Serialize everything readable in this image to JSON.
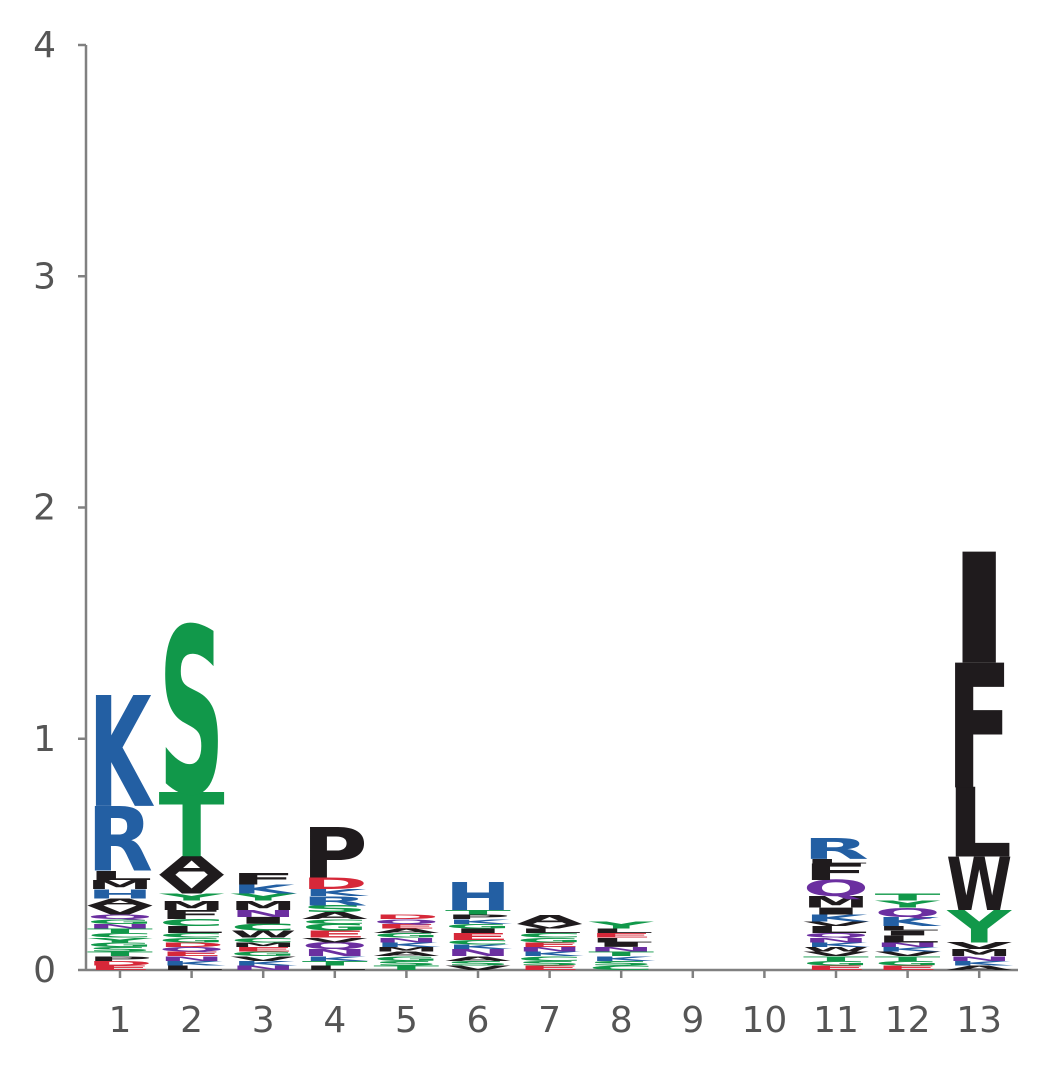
{
  "colors": {
    "axis": "#808080",
    "tick_text": "#555555",
    "acidic": "#d62839",
    "basic": "#235fa3",
    "hydrophobic": "#1f1b1d",
    "polar": "#11984a",
    "amide": "#6b2fa0"
  },
  "chart_data": {
    "type": "sequence-logo",
    "ylim": [
      0,
      4
    ],
    "y_ticks": [
      "0",
      "1",
      "2",
      "3",
      "4"
    ],
    "x_ticks": [
      "1",
      "2",
      "3",
      "4",
      "5",
      "6",
      "7",
      "8",
      "9",
      "10",
      "11",
      "12",
      "13"
    ],
    "color_scheme": {
      "D": "acidic",
      "E": "acidic",
      "K": "basic",
      "R": "basic",
      "H": "basic",
      "S": "polar",
      "T": "polar",
      "G": "polar",
      "Y": "polar",
      "C": "polar",
      "N": "amide",
      "Q": "amide",
      "A": "hydrophobic",
      "V": "hydrophobic",
      "L": "hydrophobic",
      "I": "hydrophobic",
      "P": "hydrophobic",
      "W": "hydrophobic",
      "F": "hydrophobic",
      "M": "hydrophobic"
    },
    "positions": [
      {
        "pos": "1",
        "letters": [
          [
            "E",
            0.02
          ],
          [
            "D",
            0.02
          ],
          [
            "P",
            0.02
          ],
          [
            "T",
            0.02
          ],
          [
            "S",
            0.02
          ],
          [
            "G",
            0.02
          ],
          [
            "Y",
            0.02
          ],
          [
            "C",
            0.02
          ],
          [
            "T",
            0.02
          ],
          [
            "N",
            0.02
          ],
          [
            "G",
            0.02
          ],
          [
            "Q",
            0.02
          ],
          [
            "V",
            0.04
          ],
          [
            "A",
            0.03
          ],
          [
            "H",
            0.04
          ],
          [
            "M",
            0.04
          ],
          [
            "L",
            0.04
          ],
          [
            "R",
            0.28
          ],
          [
            "K",
            0.48
          ]
        ]
      },
      {
        "pos": "2",
        "letters": [
          [
            "L",
            0.02
          ],
          [
            "K",
            0.02
          ],
          [
            "N",
            0.02
          ],
          [
            "E",
            0.02
          ],
          [
            "Q",
            0.02
          ],
          [
            "D",
            0.02
          ],
          [
            "G",
            0.02
          ],
          [
            "C",
            0.02
          ],
          [
            "L",
            0.03
          ],
          [
            "C",
            0.03
          ],
          [
            "F",
            0.04
          ],
          [
            "M",
            0.04
          ],
          [
            "Y",
            0.03
          ],
          [
            "V",
            0.08
          ],
          [
            "A",
            0.08
          ],
          [
            "T",
            0.28
          ],
          [
            "S",
            0.72
          ]
        ]
      },
      {
        "pos": "3",
        "letters": [
          [
            "N",
            0.02
          ],
          [
            "K",
            0.02
          ],
          [
            "V",
            0.02
          ],
          [
            "G",
            0.02
          ],
          [
            "E",
            0.02
          ],
          [
            "M",
            0.02
          ],
          [
            "C",
            0.02
          ],
          [
            "W",
            0.03
          ],
          [
            "C",
            0.03
          ],
          [
            "I",
            0.03
          ],
          [
            "N",
            0.03
          ],
          [
            "M",
            0.04
          ],
          [
            "Y",
            0.03
          ],
          [
            "K",
            0.04
          ],
          [
            "F",
            0.05
          ]
        ]
      },
      {
        "pos": "4",
        "letters": [
          [
            "L",
            0.02
          ],
          [
            "T",
            0.02
          ],
          [
            "K",
            0.02
          ],
          [
            "N",
            0.03
          ],
          [
            "Q",
            0.03
          ],
          [
            "V",
            0.02
          ],
          [
            "E",
            0.03
          ],
          [
            "G",
            0.03
          ],
          [
            "C",
            0.02
          ],
          [
            "A",
            0.03
          ],
          [
            "S",
            0.03
          ],
          [
            "R",
            0.04
          ],
          [
            "K",
            0.03
          ],
          [
            "D",
            0.05
          ],
          [
            "P",
            0.22
          ]
        ]
      },
      {
        "pos": "5",
        "letters": [
          [
            "T",
            0.02
          ],
          [
            "S",
            0.02
          ],
          [
            "G",
            0.02
          ],
          [
            "A",
            0.02
          ],
          [
            "M",
            0.02
          ],
          [
            "K",
            0.02
          ],
          [
            "N",
            0.02
          ],
          [
            "G",
            0.02
          ],
          [
            "A",
            0.02
          ],
          [
            "E",
            0.02
          ],
          [
            "Q",
            0.02
          ],
          [
            "D",
            0.02
          ]
        ]
      },
      {
        "pos": "6",
        "letters": [
          [
            "V",
            0.02
          ],
          [
            "S",
            0.02
          ],
          [
            "A",
            0.02
          ],
          [
            "N",
            0.03
          ],
          [
            "K",
            0.02
          ],
          [
            "C",
            0.02
          ],
          [
            "E",
            0.03
          ],
          [
            "I",
            0.02
          ],
          [
            "G",
            0.02
          ],
          [
            "K",
            0.02
          ],
          [
            "P",
            0.02
          ],
          [
            "T",
            0.02
          ],
          [
            "H",
            0.12
          ]
        ]
      },
      {
        "pos": "7",
        "letters": [
          [
            "E",
            0.02
          ],
          [
            "S",
            0.02
          ],
          [
            "C",
            0.02
          ],
          [
            "K",
            0.02
          ],
          [
            "N",
            0.02
          ],
          [
            "E",
            0.02
          ],
          [
            "G",
            0.02
          ],
          [
            "C",
            0.02
          ],
          [
            "L",
            0.02
          ],
          [
            "V",
            0.02
          ],
          [
            "A",
            0.04
          ]
        ]
      },
      {
        "pos": "8",
        "letters": [
          [
            "C",
            0.02
          ],
          [
            "S",
            0.02
          ],
          [
            "K",
            0.02
          ],
          [
            "T",
            0.02
          ],
          [
            "N",
            0.02
          ],
          [
            "I",
            0.02
          ],
          [
            "L",
            0.02
          ],
          [
            "E",
            0.02
          ],
          [
            "L",
            0.02
          ],
          [
            "Y",
            0.03
          ]
        ]
      },
      {
        "pos": "9",
        "letters": []
      },
      {
        "pos": "10",
        "letters": []
      },
      {
        "pos": "11",
        "letters": [
          [
            "E",
            0.02
          ],
          [
            "G",
            0.02
          ],
          [
            "T",
            0.02
          ],
          [
            "V",
            0.02
          ],
          [
            "W",
            0.02
          ],
          [
            "K",
            0.02
          ],
          [
            "N",
            0.02
          ],
          [
            "Q",
            0.02
          ],
          [
            "L",
            0.03
          ],
          [
            "V",
            0.02
          ],
          [
            "K",
            0.03
          ],
          [
            "I",
            0.03
          ],
          [
            "M",
            0.05
          ],
          [
            "Q",
            0.07
          ],
          [
            "F",
            0.07
          ],
          [
            "L",
            0.02
          ],
          [
            "R",
            0.09
          ]
        ]
      },
      {
        "pos": "12",
        "letters": [
          [
            "E",
            0.02
          ],
          [
            "G",
            0.02
          ],
          [
            "T",
            0.02
          ],
          [
            "V",
            0.02
          ],
          [
            "K",
            0.02
          ],
          [
            "N",
            0.02
          ],
          [
            "L",
            0.03
          ],
          [
            "I",
            0.02
          ],
          [
            "L",
            0.02
          ],
          [
            "K",
            0.04
          ],
          [
            "Q",
            0.04
          ],
          [
            "Y",
            0.03
          ],
          [
            "T",
            0.03
          ]
        ]
      },
      {
        "pos": "13",
        "letters": [
          [
            "A",
            0.02
          ],
          [
            "K",
            0.02
          ],
          [
            "N",
            0.02
          ],
          [
            "M",
            0.03
          ],
          [
            "V",
            0.03
          ],
          [
            "Y",
            0.14
          ],
          [
            "W",
            0.23
          ],
          [
            "L",
            0.3
          ],
          [
            "F",
            0.54
          ],
          [
            "I",
            0.48
          ]
        ]
      }
    ]
  }
}
